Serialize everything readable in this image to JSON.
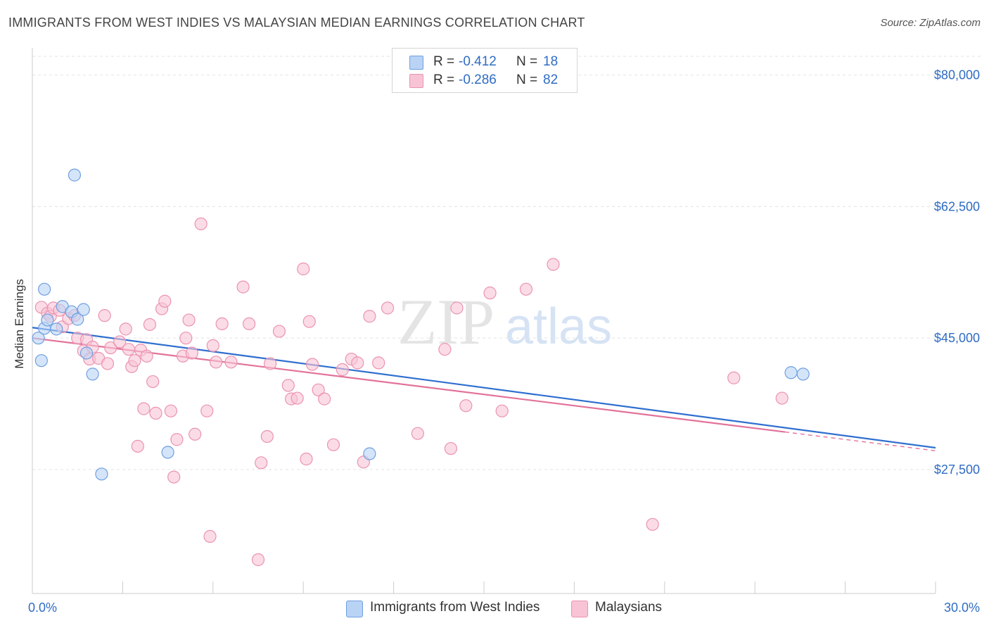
{
  "title": "IMMIGRANTS FROM WEST INDIES VS MALAYSIAN MEDIAN EARNINGS CORRELATION CHART",
  "source": "Source: ZipAtlas.com",
  "watermark": {
    "zip": "ZIP",
    "atlas": "atlas"
  },
  "legend": {
    "series1": {
      "r_label": "R =",
      "r_value": "-0.412",
      "n_label": "N =",
      "n_value": "18"
    },
    "series2": {
      "r_label": "R =",
      "r_value": "-0.286",
      "n_label": "N =",
      "n_value": "82"
    }
  },
  "bottom_legend": {
    "series1": "Immigrants from West Indies",
    "series2": "Malaysians"
  },
  "colors": {
    "series1_fill": "#b9d3f5",
    "series1_stroke": "#6f9fe0",
    "series1_line": "#2f6fcf",
    "series2_fill": "#f8c4d5",
    "series2_stroke": "#eb93b0",
    "series2_line": "#e2729a",
    "axis_text": "#2f6cc4",
    "grid": "#e3e3e3"
  },
  "chart_data": {
    "type": "scatter",
    "title": "IMMIGRANTS FROM WEST INDIES VS MALAYSIAN MEDIAN EARNINGS CORRELATION CHART",
    "xlabel": "",
    "ylabel": "Median Earnings",
    "xlim": [
      0,
      30
    ],
    "ylim": [
      11000,
      82500
    ],
    "x_tick_labels": [
      {
        "value": 0,
        "label": "0.0%"
      },
      {
        "value": 30,
        "label": "30.0%"
      }
    ],
    "y_tick_labels": [
      {
        "value": 80000,
        "label": "$80,000"
      },
      {
        "value": 62500,
        "label": "$62,500"
      },
      {
        "value": 45000,
        "label": "$45,000"
      },
      {
        "value": 27500,
        "label": "$27,500"
      }
    ],
    "x_minor_ticks": [
      3,
      6,
      9,
      12,
      15,
      18,
      21,
      24,
      27,
      30
    ],
    "series": [
      {
        "name": "Immigrants from West Indies",
        "points": [
          [
            0.2,
            45000
          ],
          [
            0.4,
            46300
          ],
          [
            0.5,
            47400
          ],
          [
            0.3,
            42000
          ],
          [
            0.4,
            51500
          ],
          [
            1.0,
            49200
          ],
          [
            1.3,
            48500
          ],
          [
            1.4,
            66700
          ],
          [
            1.5,
            47500
          ],
          [
            1.7,
            48800
          ],
          [
            1.8,
            43000
          ],
          [
            2.0,
            40200
          ],
          [
            2.3,
            26900
          ],
          [
            4.5,
            29800
          ],
          [
            11.2,
            29600
          ],
          [
            25.2,
            40400
          ],
          [
            25.6,
            40200
          ],
          [
            0.8,
            46200
          ]
        ],
        "trend": {
          "x": [
            0,
            30
          ],
          "y": [
            46400,
            30400
          ]
        }
      },
      {
        "name": "Malaysians",
        "points": [
          [
            0.3,
            49100
          ],
          [
            0.5,
            48300
          ],
          [
            0.6,
            47900
          ],
          [
            0.7,
            49000
          ],
          [
            0.9,
            48700
          ],
          [
            1.0,
            46500
          ],
          [
            1.2,
            47600
          ],
          [
            1.4,
            48000
          ],
          [
            1.5,
            45000
          ],
          [
            1.7,
            43300
          ],
          [
            1.8,
            44800
          ],
          [
            1.9,
            42200
          ],
          [
            2.0,
            43800
          ],
          [
            2.2,
            42300
          ],
          [
            2.4,
            48000
          ],
          [
            2.5,
            41600
          ],
          [
            2.6,
            43700
          ],
          [
            2.9,
            44500
          ],
          [
            3.1,
            46200
          ],
          [
            3.2,
            43500
          ],
          [
            3.3,
            41200
          ],
          [
            3.4,
            42000
          ],
          [
            3.5,
            30600
          ],
          [
            3.6,
            43400
          ],
          [
            3.7,
            35600
          ],
          [
            3.8,
            42600
          ],
          [
            3.9,
            46800
          ],
          [
            4.0,
            39200
          ],
          [
            4.1,
            35000
          ],
          [
            4.3,
            48900
          ],
          [
            4.4,
            49900
          ],
          [
            4.6,
            35300
          ],
          [
            4.7,
            26500
          ],
          [
            4.8,
            31500
          ],
          [
            5.0,
            42600
          ],
          [
            5.1,
            45000
          ],
          [
            5.2,
            47400
          ],
          [
            5.3,
            43000
          ],
          [
            5.4,
            32200
          ],
          [
            5.6,
            60200
          ],
          [
            5.8,
            35300
          ],
          [
            5.9,
            18600
          ],
          [
            6.0,
            44000
          ],
          [
            6.1,
            41800
          ],
          [
            6.3,
            46900
          ],
          [
            6.6,
            41800
          ],
          [
            7.0,
            51800
          ],
          [
            7.2,
            46900
          ],
          [
            7.5,
            15500
          ],
          [
            7.6,
            28400
          ],
          [
            7.8,
            31900
          ],
          [
            7.9,
            41600
          ],
          [
            8.2,
            45900
          ],
          [
            8.5,
            38700
          ],
          [
            8.6,
            36900
          ],
          [
            8.8,
            37000
          ],
          [
            9.0,
            54200
          ],
          [
            9.1,
            28900
          ],
          [
            9.2,
            47200
          ],
          [
            9.3,
            41500
          ],
          [
            9.5,
            38100
          ],
          [
            9.7,
            36900
          ],
          [
            10.0,
            30800
          ],
          [
            10.3,
            40800
          ],
          [
            10.6,
            42200
          ],
          [
            10.8,
            41700
          ],
          [
            11.0,
            28500
          ],
          [
            11.2,
            47900
          ],
          [
            11.5,
            41700
          ],
          [
            11.8,
            49000
          ],
          [
            12.8,
            32300
          ],
          [
            13.7,
            43500
          ],
          [
            13.9,
            30300
          ],
          [
            14.1,
            49000
          ],
          [
            14.4,
            36000
          ],
          [
            15.2,
            51000
          ],
          [
            15.6,
            35300
          ],
          [
            16.4,
            51500
          ],
          [
            17.3,
            54800
          ],
          [
            20.6,
            20200
          ],
          [
            23.3,
            39700
          ],
          [
            24.9,
            37000
          ]
        ],
        "trend": {
          "x": [
            0,
            25
          ],
          "y": [
            45000,
            32500
          ],
          "dashed_extension_x": [
            25,
            30
          ],
          "dashed_extension_y": [
            32500,
            30000
          ]
        }
      }
    ]
  }
}
